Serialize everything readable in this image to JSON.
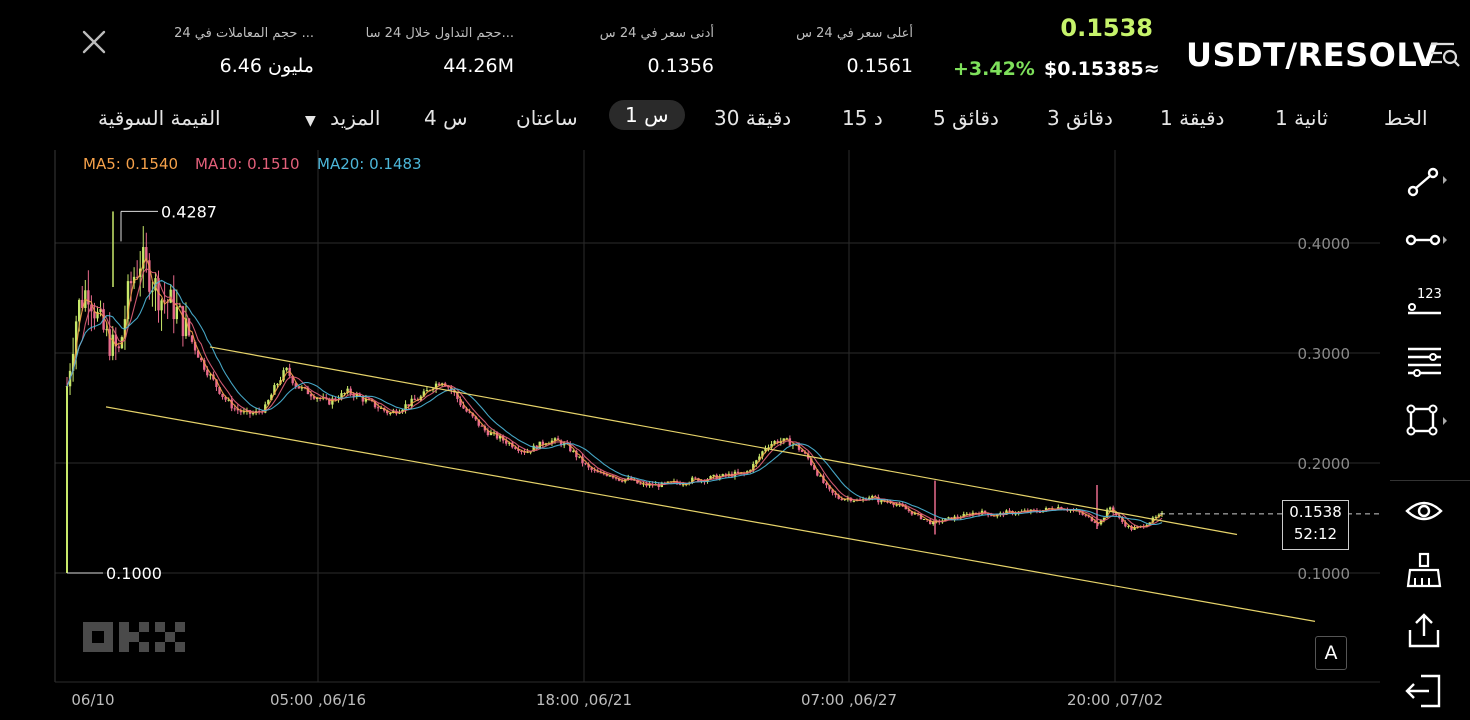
{
  "header": {
    "pair": "USDT/RESOLV",
    "last_price": "0.1538",
    "usd_price": "$0.15385≈",
    "change": "+3.42%",
    "stats": [
      {
        "label": "أعلى سعر في 24 س",
        "value": "0.1561"
      },
      {
        "label": "أدنى سعر في 24 س",
        "value": "0.1356"
      },
      {
        "label": "حجم التداول خلال 24 سا...",
        "value": "44.26M"
      },
      {
        "label": "حجم المعاملات في 24 ...",
        "value": "6.46 مليون"
      }
    ]
  },
  "timeframes": [
    {
      "label": "الخط"
    },
    {
      "label": "ثانية 1"
    },
    {
      "label": "دقيقة 1"
    },
    {
      "label": "3 دقائق"
    },
    {
      "label": "5 دقائق"
    },
    {
      "label": "15 د"
    },
    {
      "label": "30 دقيقة"
    },
    {
      "label": "1 س",
      "active": true
    },
    {
      "label": "ساعتان"
    },
    {
      "label": "4 س"
    },
    {
      "label": "المزيد"
    },
    {
      "label": "القيمة السوقية"
    }
  ],
  "indicators": {
    "ma5": "MA5: 0.1540",
    "ma10": "MA10: 0.1510",
    "ma20": "MA20: 0.1483",
    "colors": {
      "ma5": "#f5a14a",
      "ma10": "#e2607a",
      "ma20": "#4cb6d8"
    }
  },
  "current": {
    "price": "0.1538",
    "countdown": "52:12"
  },
  "auto_label": "A",
  "chart_data": {
    "type": "candlestick",
    "x_ticks": [
      "06/10",
      "05:00 ,06/16",
      "18:00 ,06/21",
      "07:00 ,06/27",
      "20:00 ,07/02"
    ],
    "y_ticks": [
      "0.4000",
      "0.3000",
      "0.2000",
      "0.1000"
    ],
    "ylim": [
      0.05,
      0.44
    ],
    "high_marker": "0.4287",
    "low_marker": "0.1000",
    "path": [
      [
        0,
        0.27
      ],
      [
        1,
        0.34
      ],
      [
        2,
        0.36
      ],
      [
        3,
        0.33
      ],
      [
        4,
        0.31
      ],
      [
        5,
        0.3
      ],
      [
        6,
        0.36
      ],
      [
        7,
        0.385
      ],
      [
        8,
        0.37
      ],
      [
        9,
        0.35
      ],
      [
        10,
        0.345
      ],
      [
        11,
        0.33
      ],
      [
        12,
        0.31
      ],
      [
        13,
        0.29
      ],
      [
        14,
        0.275
      ],
      [
        15,
        0.26
      ],
      [
        16,
        0.25
      ],
      [
        17,
        0.245
      ],
      [
        18,
        0.245
      ],
      [
        19,
        0.25
      ],
      [
        20,
        0.27
      ],
      [
        21,
        0.285
      ],
      [
        22,
        0.27
      ],
      [
        23,
        0.265
      ],
      [
        24,
        0.26
      ],
      [
        25,
        0.255
      ],
      [
        26,
        0.26
      ],
      [
        27,
        0.265
      ],
      [
        28,
        0.26
      ],
      [
        29,
        0.255
      ],
      [
        30,
        0.25
      ],
      [
        31,
        0.245
      ],
      [
        32,
        0.25
      ],
      [
        33,
        0.255
      ],
      [
        34,
        0.26
      ],
      [
        35,
        0.27
      ],
      [
        36,
        0.275
      ],
      [
        37,
        0.265
      ],
      [
        38,
        0.25
      ],
      [
        39,
        0.24
      ],
      [
        40,
        0.23
      ],
      [
        41,
        0.225
      ],
      [
        42,
        0.22
      ],
      [
        43,
        0.215
      ],
      [
        44,
        0.21
      ],
      [
        45,
        0.215
      ],
      [
        46,
        0.22
      ],
      [
        47,
        0.22
      ],
      [
        48,
        0.215
      ],
      [
        49,
        0.205
      ],
      [
        50,
        0.195
      ],
      [
        51,
        0.19
      ],
      [
        52,
        0.19
      ],
      [
        53,
        0.185
      ],
      [
        54,
        0.185
      ],
      [
        55,
        0.18
      ],
      [
        56,
        0.18
      ],
      [
        57,
        0.18
      ],
      [
        58,
        0.182
      ],
      [
        59,
        0.182
      ],
      [
        60,
        0.185
      ],
      [
        61,
        0.185
      ],
      [
        62,
        0.187
      ],
      [
        63,
        0.188
      ],
      [
        64,
        0.19
      ],
      [
        65,
        0.19
      ],
      [
        66,
        0.2
      ],
      [
        67,
        0.215
      ],
      [
        68,
        0.22
      ],
      [
        69,
        0.22
      ],
      [
        70,
        0.215
      ],
      [
        71,
        0.205
      ],
      [
        72,
        0.19
      ],
      [
        73,
        0.175
      ],
      [
        74,
        0.168
      ],
      [
        75,
        0.168
      ],
      [
        76,
        0.165
      ],
      [
        77,
        0.17
      ],
      [
        78,
        0.165
      ],
      [
        79,
        0.165
      ],
      [
        80,
        0.16
      ],
      [
        81,
        0.155
      ],
      [
        82,
        0.15
      ],
      [
        83,
        0.145
      ],
      [
        84,
        0.148
      ],
      [
        85,
        0.15
      ],
      [
        86,
        0.152
      ],
      [
        87,
        0.155
      ],
      [
        88,
        0.155
      ],
      [
        89,
        0.152
      ],
      [
        90,
        0.155
      ],
      [
        91,
        0.155
      ],
      [
        92,
        0.156
      ],
      [
        93,
        0.156
      ],
      [
        94,
        0.158
      ],
      [
        95,
        0.16
      ],
      [
        96,
        0.158
      ],
      [
        97,
        0.155
      ],
      [
        98,
        0.15
      ],
      [
        99,
        0.145
      ],
      [
        100,
        0.16
      ],
      [
        101,
        0.148
      ],
      [
        102,
        0.14
      ],
      [
        103,
        0.142
      ],
      [
        104,
        0.148
      ],
      [
        105,
        0.153
      ]
    ],
    "channel_upper": [
      [
        0.305,
        0.13
      ]
    ],
    "channel_lower": [
      [
        0.25,
        0.056
      ]
    ]
  }
}
